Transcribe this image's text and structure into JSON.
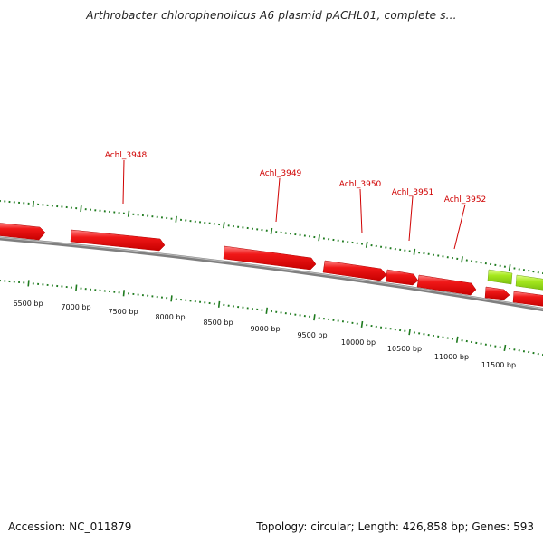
{
  "title": "Arthrobacter chlorophenolicus A6 plasmid pACHL01, complete s...",
  "footer": {
    "accession": "Accession: NC_011879",
    "topology": "Topology: circular; Length: 426,858 bp; Genes: 593"
  },
  "colors": {
    "gene_red": "#e8141a",
    "gene_green": "#a8e824",
    "backbone": "#808080",
    "ticks": "#1e7a1e",
    "label_red": "#d00000"
  },
  "scale_labels": [
    {
      "text": "6500 bp"
    },
    {
      "text": "7000 bp"
    },
    {
      "text": "7500 bp"
    },
    {
      "text": "8000 bp"
    },
    {
      "text": "8500 bp"
    },
    {
      "text": "9000 bp"
    },
    {
      "text": "9500 bp"
    },
    {
      "text": "10000 bp"
    },
    {
      "text": "10500 bp"
    },
    {
      "text": "11000 bp"
    },
    {
      "text": "11500 bp"
    }
  ],
  "gene_labels": [
    {
      "text": "Achl_3948"
    },
    {
      "text": "Achl_3949"
    },
    {
      "text": "Achl_3950"
    },
    {
      "text": "Achl_3951"
    },
    {
      "text": "Achl_3952"
    }
  ]
}
